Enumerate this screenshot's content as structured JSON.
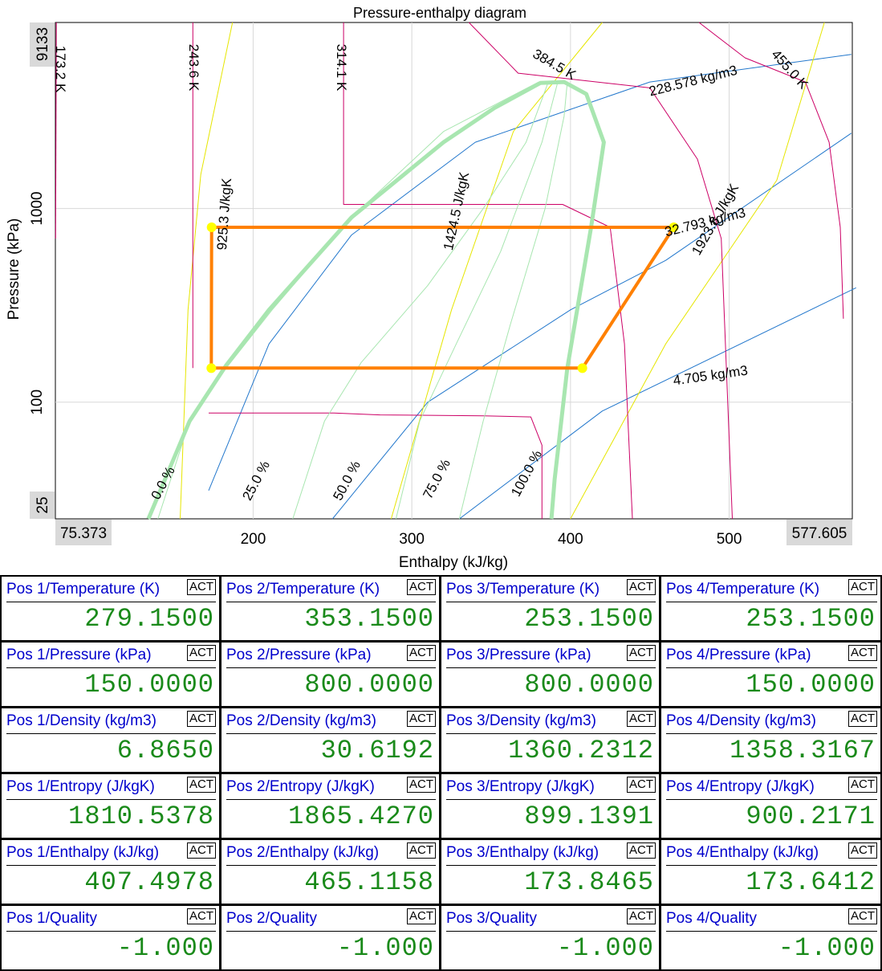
{
  "chart_data": {
    "type": "line",
    "title": "Pressure-enthalpy diagram",
    "xlabel": "Enthalpy (kJ/kg)",
    "ylabel": "Pressure (kPa)",
    "xlim": [
      75.373,
      577.605
    ],
    "ylim": [
      25,
      9133
    ],
    "yscale": "log",
    "x_ticks": [
      200,
      300,
      400,
      500
    ],
    "y_ticks": [
      100,
      1000
    ],
    "x_range_labels": [
      "75.373",
      "577.605"
    ],
    "y_range_labels": [
      "9133",
      "25"
    ],
    "grid": true,
    "colors": {
      "dome": "#a8e6b0",
      "quality": "#a8e6b0",
      "isotherm": "#cc0066",
      "isochore": "#2277cc",
      "isentrope": "#e6e600",
      "cycle": "#ff8000",
      "points": "#ffff00"
    },
    "quality_labels": [
      "0.0 %",
      "25.0 %",
      "50.0 %",
      "75.0 %",
      "100.0 %"
    ],
    "isotherm_labels": [
      "173.2 K",
      "243.6 K",
      "314.1 K",
      "384.5 K",
      "455.0 K"
    ],
    "isochore_labels": [
      "228.578 kg/m3",
      "32.793 kg/m3",
      "4.705 kg/m3"
    ],
    "isentrope_labels": [
      "925.3 J/kgK",
      "1424.5 J/kgK",
      "1923.8 J/kgK"
    ],
    "cycle": [
      {
        "h": 407.4978,
        "p": 150.0
      },
      {
        "h": 465.1158,
        "p": 800.0
      },
      {
        "h": 173.8465,
        "p": 800.0
      },
      {
        "h": 173.6412,
        "p": 150.0
      }
    ]
  },
  "panel": {
    "badge": "ACT",
    "rows": [
      {
        "cells": [
          {
            "label": "Pos 1/Temperature (K)",
            "value": "279.1500"
          },
          {
            "label": "Pos 2/Temperature (K)",
            "value": "353.1500"
          },
          {
            "label": "Pos 3/Temperature (K)",
            "value": "253.1500"
          },
          {
            "label": "Pos 4/Temperature (K)",
            "value": "253.1500"
          }
        ]
      },
      {
        "cells": [
          {
            "label": "Pos 1/Pressure (kPa)",
            "value": "150.0000"
          },
          {
            "label": "Pos 2/Pressure (kPa)",
            "value": "800.0000"
          },
          {
            "label": "Pos 3/Pressure (kPa)",
            "value": "800.0000"
          },
          {
            "label": "Pos 4/Pressure (kPa)",
            "value": "150.0000"
          }
        ]
      },
      {
        "cells": [
          {
            "label": "Pos 1/Density (kg/m3)",
            "value": "6.8650"
          },
          {
            "label": "Pos 2/Density (kg/m3)",
            "value": "30.6192"
          },
          {
            "label": "Pos 3/Density (kg/m3)",
            "value": "1360.2312"
          },
          {
            "label": "Pos 4/Density (kg/m3)",
            "value": "1358.3167"
          }
        ]
      },
      {
        "cells": [
          {
            "label": "Pos 1/Entropy (J/kgK)",
            "value": "1810.5378"
          },
          {
            "label": "Pos 2/Entropy (J/kgK)",
            "value": "1865.4270"
          },
          {
            "label": "Pos 3/Entropy (J/kgK)",
            "value": "899.1391"
          },
          {
            "label": "Pos 4/Entropy (J/kgK)",
            "value": "900.2171"
          }
        ]
      },
      {
        "cells": [
          {
            "label": "Pos 1/Enthalpy (kJ/kg)",
            "value": "407.4978"
          },
          {
            "label": "Pos 2/Enthalpy (kJ/kg)",
            "value": "465.1158"
          },
          {
            "label": "Pos 3/Enthalpy (kJ/kg)",
            "value": "173.8465"
          },
          {
            "label": "Pos 4/Enthalpy (kJ/kg)",
            "value": "173.6412"
          }
        ]
      },
      {
        "cells": [
          {
            "label": "Pos 1/Quality",
            "value": "-1.000"
          },
          {
            "label": "Pos 2/Quality",
            "value": "-1.000"
          },
          {
            "label": "Pos 3/Quality",
            "value": "-1.000"
          },
          {
            "label": "Pos 4/Quality",
            "value": "-1.000"
          }
        ]
      }
    ]
  }
}
